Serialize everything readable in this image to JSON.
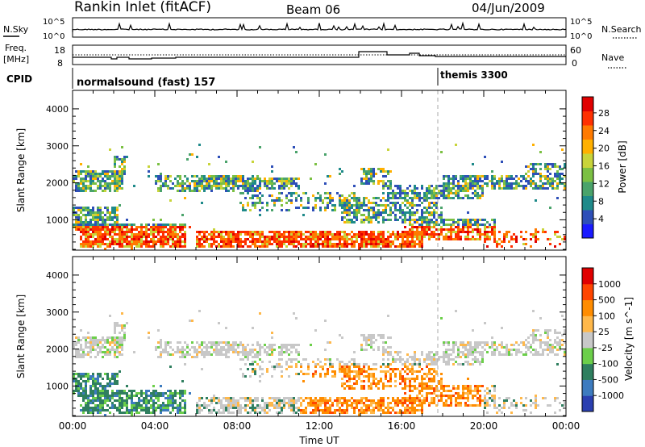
{
  "header": {
    "station": "Rankin Inlet (fitACF)",
    "beam": "Beam 06",
    "date": "04/Jun/2009"
  },
  "top_panel": {
    "left_label": "N.Sky",
    "right_label": "N.Search",
    "left_ticks": [
      "10^5",
      "10^0"
    ],
    "right_ticks": [
      "10^5",
      "10^0"
    ]
  },
  "freq_panel": {
    "left_label_1": "Freq.",
    "left_label_2": "[MHz]",
    "left_ticks": [
      "18",
      "8"
    ],
    "right_label": "Nave",
    "right_ticks": [
      "60",
      "0"
    ]
  },
  "cpid_panel": {
    "label": "CPID",
    "mode_1": "normalsound (fast) 157",
    "mode_2": "themis 3300"
  },
  "chart_data": [
    {
      "type": "heatmap",
      "title": "Power",
      "ylabel": "Slant Range [km]",
      "xlabel": "",
      "colorbar_label": "Power [dB]",
      "colorbar_ticks": [
        4,
        8,
        12,
        16,
        20,
        24,
        28
      ],
      "colorbar_colors": [
        "#1a1aff",
        "#2e4fb8",
        "#1f8a8a",
        "#4aa36b",
        "#7bc043",
        "#c8d43a",
        "#ffb000",
        "#ff7a00",
        "#ff3000",
        "#e00000"
      ],
      "x_ticks": [
        "00:00",
        "04:00",
        "08:00",
        "12:00",
        "16:00",
        "20:00",
        "00:00"
      ],
      "y_ticks": [
        1000,
        2000,
        3000,
        4000
      ],
      "ylim": [
        180,
        4500
      ],
      "xlim_hours": [
        0,
        24
      ]
    },
    {
      "type": "heatmap",
      "title": "Velocity",
      "ylabel": "Slant Range [km]",
      "xlabel": "Time UT",
      "colorbar_label": "Velocity [m s^-1]",
      "colorbar_ticks": [
        1000,
        500,
        100,
        25,
        -25,
        -100,
        -500,
        -1000
      ],
      "colorbar_colors": [
        "#2a3fb0",
        "#3d7bbf",
        "#2f7f5f",
        "#6ccf4a",
        "#c8c8c8",
        "#ffb84a",
        "#ff8c00",
        "#ff4500",
        "#e00000"
      ],
      "x_ticks": [
        "00:00",
        "04:00",
        "08:00",
        "12:00",
        "16:00",
        "20:00",
        "00:00"
      ],
      "y_ticks": [
        1000,
        2000,
        3000,
        4000
      ],
      "ylim": [
        180,
        4500
      ],
      "xlim_hours": [
        0,
        24
      ]
    }
  ],
  "xaxis": {
    "label": "Time UT"
  }
}
